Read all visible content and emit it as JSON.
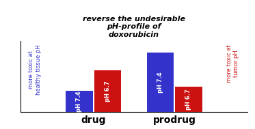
{
  "chart_data": {
    "type": "bar",
    "title": "reverse the undesirable\npH-profile of\ndoxorubicin",
    "categories": [
      "drug",
      "prodrug"
    ],
    "series": [
      {
        "name": "pH 7.4",
        "color": "#3333cc",
        "values": [
          0.32,
          0.88
        ]
      },
      {
        "name": "pH 6.7",
        "color": "#cc1111",
        "values": [
          0.62,
          0.38
        ]
      }
    ],
    "ylim": [
      0,
      1.05
    ],
    "yticks": [],
    "tick_labels": "x",
    "annotations": [
      "more toxic at\nhealthy tissue pH",
      "more toxic at\ntumor pH"
    ]
  }
}
